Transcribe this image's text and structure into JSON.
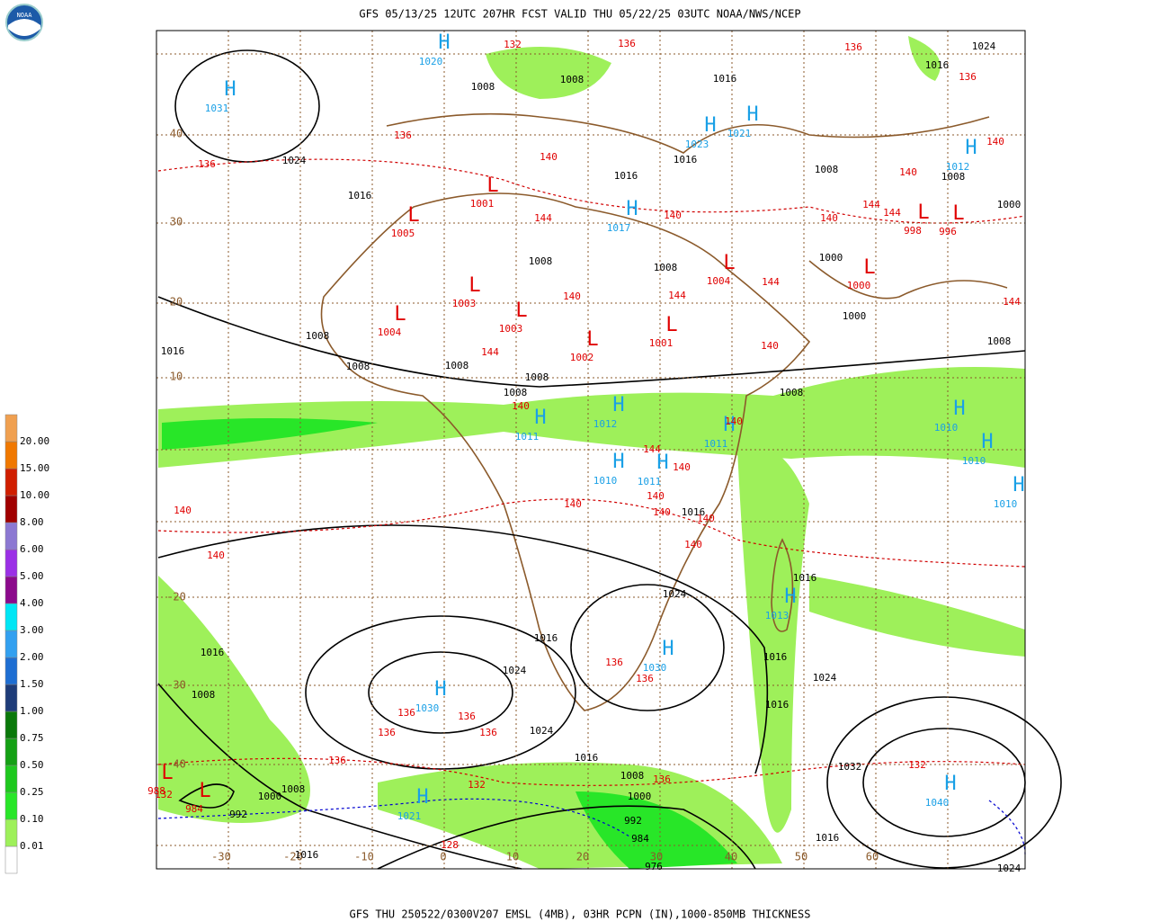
{
  "header": {
    "title": "GFS 05/13/25 12UTC 207HR FCST VALID THU 05/22/25 03UTC NOAA/NWS/NCEP"
  },
  "footer": {
    "caption": "GFS THU 250522/0300V207 EMSL (4MB), 03HR PCPN (IN),1000-850MB THICKNESS"
  },
  "logo": {
    "text": "NOAA"
  },
  "legend": {
    "levels": [
      "0.01",
      "0.10",
      "0.25",
      "0.50",
      "0.75",
      "1.00",
      "1.50",
      "2.00",
      "3.00",
      "4.00",
      "5.00",
      "6.00",
      "8.00",
      "10.00",
      "15.00",
      "20.00"
    ],
    "colors": [
      "#9ef05a",
      "#28e628",
      "#1ec81e",
      "#14a014",
      "#0a780a",
      "#1e3c78",
      "#1e6ed2",
      "#32a0f0",
      "#00e6f5",
      "#8c0a8c",
      "#9b30e6",
      "#8c78d2",
      "#a00000",
      "#d01e00",
      "#f07800",
      "#f0a050"
    ]
  },
  "map": {
    "lat_labels": [
      "40",
      "30",
      "20",
      "10",
      "-20",
      "-30",
      "-40"
    ],
    "lon_labels": [
      "-30",
      "-20",
      "-10",
      "0",
      "10",
      "20",
      "30",
      "40",
      "50",
      "60"
    ],
    "highs": [
      {
        "symbol": "H",
        "value": "1031"
      },
      {
        "symbol": "H",
        "value": "1020"
      },
      {
        "symbol": "H",
        "value": "1023"
      },
      {
        "symbol": "H",
        "value": "1021"
      },
      {
        "symbol": "H",
        "value": "1017"
      },
      {
        "symbol": "H",
        "value": "1012"
      },
      {
        "symbol": "H",
        "value": "1011"
      },
      {
        "symbol": "H",
        "value": "1012"
      },
      {
        "symbol": "H",
        "value": "1010"
      },
      {
        "symbol": "H",
        "value": "1011"
      },
      {
        "symbol": "H",
        "value": "1011"
      },
      {
        "symbol": "H",
        "value": "1010"
      },
      {
        "symbol": "H",
        "value": "1010"
      },
      {
        "symbol": "H",
        "value": "1010"
      },
      {
        "symbol": "H",
        "value": "1013"
      },
      {
        "symbol": "H",
        "value": "1030"
      },
      {
        "symbol": "H",
        "value": "1030"
      },
      {
        "symbol": "H",
        "value": "1021"
      },
      {
        "symbol": "H",
        "value": "1040"
      }
    ],
    "lows": [
      {
        "symbol": "L",
        "value": "1005"
      },
      {
        "symbol": "L",
        "value": "1001"
      },
      {
        "symbol": "L",
        "value": "1003"
      },
      {
        "symbol": "L",
        "value": "1003"
      },
      {
        "symbol": "L",
        "value": "1004"
      },
      {
        "symbol": "L",
        "value": "1002"
      },
      {
        "symbol": "L",
        "value": "1001"
      },
      {
        "symbol": "L",
        "value": "1004"
      },
      {
        "symbol": "L",
        "value": "1000"
      },
      {
        "symbol": "L",
        "value": "996"
      },
      {
        "symbol": "L",
        "value": "998"
      },
      {
        "symbol": "L",
        "value": "984"
      },
      {
        "symbol": "L",
        "value": "988"
      }
    ],
    "isobar_labels": [
      "1024",
      "1016",
      "1008",
      "1008",
      "1016",
      "1016",
      "1024",
      "1016",
      "1016",
      "1008",
      "1008",
      "1000",
      "1008",
      "1008",
      "1000",
      "1000",
      "1016",
      "1008",
      "1008",
      "1008",
      "1008",
      "1008",
      "1008",
      "1008",
      "1016",
      "1024",
      "1016",
      "1024",
      "1024",
      "1016",
      "1008",
      "1000",
      "992",
      "984",
      "976",
      "1016",
      "1016",
      "1016",
      "1024",
      "1032",
      "1016",
      "1024",
      "1016",
      "1008",
      "1008",
      "1000",
      "992",
      "1016"
    ],
    "thickness_labels": [
      "132",
      "136",
      "136",
      "136",
      "136",
      "136",
      "140",
      "140",
      "140",
      "144",
      "140",
      "140",
      "144",
      "144",
      "140",
      "144",
      "144",
      "144",
      "140",
      "144",
      "140",
      "140",
      "144",
      "140",
      "140",
      "140",
      "140",
      "140",
      "140",
      "140",
      "140",
      "136",
      "136",
      "136",
      "136",
      "136",
      "136",
      "136",
      "132",
      "132",
      "136",
      "132",
      "128"
    ]
  }
}
